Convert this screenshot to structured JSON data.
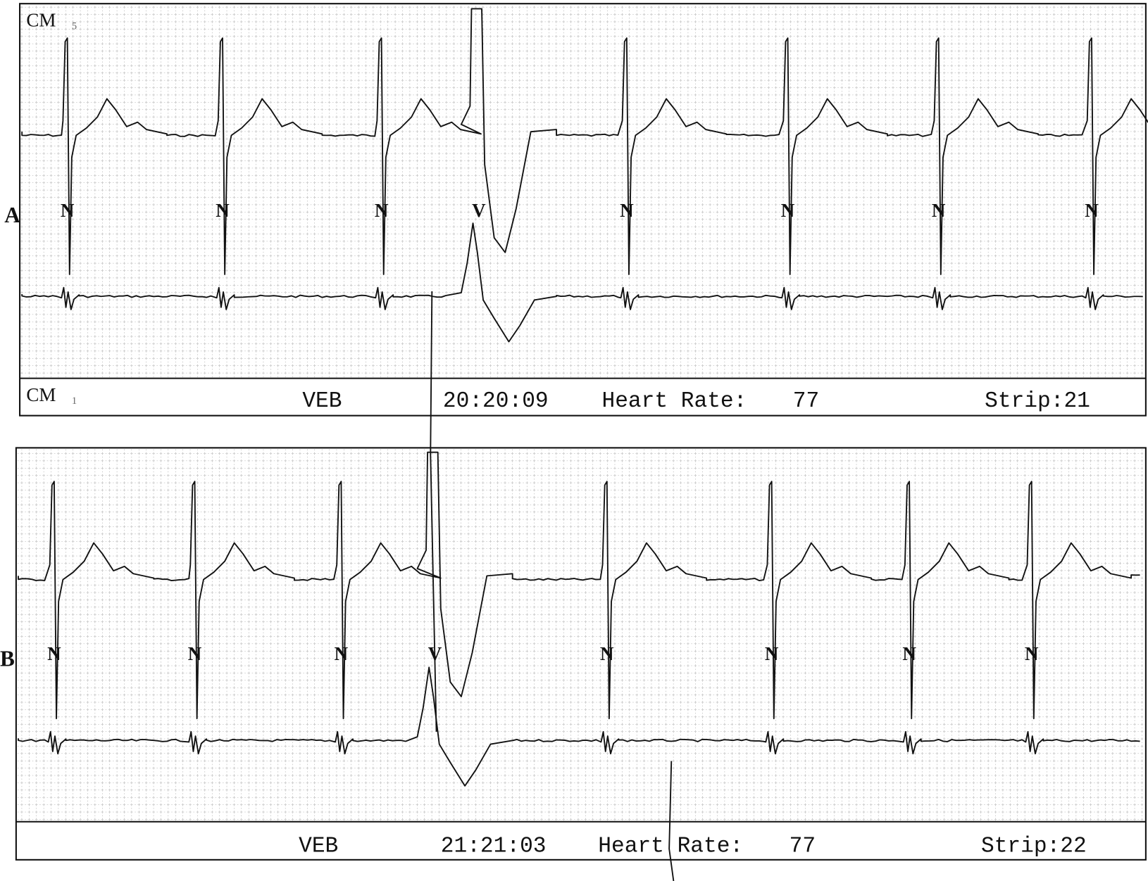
{
  "strips": [
    {
      "panel": "A",
      "top_lead": {
        "name": "CM",
        "sub": "5"
      },
      "bottom_lead": {
        "name": "CM",
        "sub": "1"
      },
      "event": "VEB",
      "time": "20:20:09",
      "heart_rate_label": "Heart Rate:",
      "heart_rate": 77,
      "strip": "Strip:21",
      "beats": [
        "N",
        "N",
        "N",
        "V",
        "N",
        "N",
        "N",
        "N"
      ]
    },
    {
      "panel": "B",
      "event": "VEB",
      "time": "21:21:03",
      "heart_rate_label": "Heart Rate:",
      "heart_rate": 77,
      "strip": "Strip:22",
      "beats": [
        "N",
        "N",
        "N",
        "V",
        "N",
        "N",
        "N",
        "N"
      ]
    }
  ]
}
